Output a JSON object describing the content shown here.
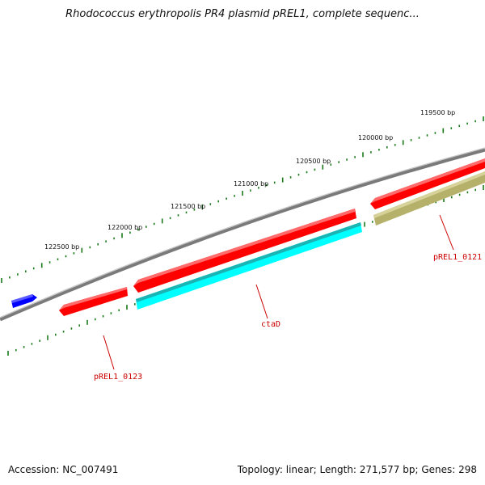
{
  "title": "Rhodococcus erythropolis PR4 plasmid pREL1, complete sequenc...",
  "footer": {
    "accession": "Accession: NC_007491",
    "stats": "Topology: linear; Length: 271,577 bp; Genes: 298"
  },
  "ruler": {
    "labels": [
      "119500 bp",
      "120000 bp",
      "120500 bp",
      "121000 bp",
      "121500 bp",
      "122000 bp",
      "122500 bp"
    ]
  },
  "genes": [
    {
      "name": "ctaD",
      "color": "#00ffff",
      "strand": "minus"
    },
    {
      "name": "pREL1_0121",
      "color": "#b5b16a",
      "strand": "minus"
    },
    {
      "name": "pREL1_0123",
      "color": "#ff0000",
      "strand": "plus"
    }
  ],
  "colors": {
    "backbone": "#7a7a7a",
    "tick": "#1a7a1a",
    "label_red": "#cc0000",
    "feature_red": "#ff0000",
    "feature_blue": "#0000ff",
    "feature_cyan": "#00ffff",
    "feature_olive": "#b5b16a"
  }
}
